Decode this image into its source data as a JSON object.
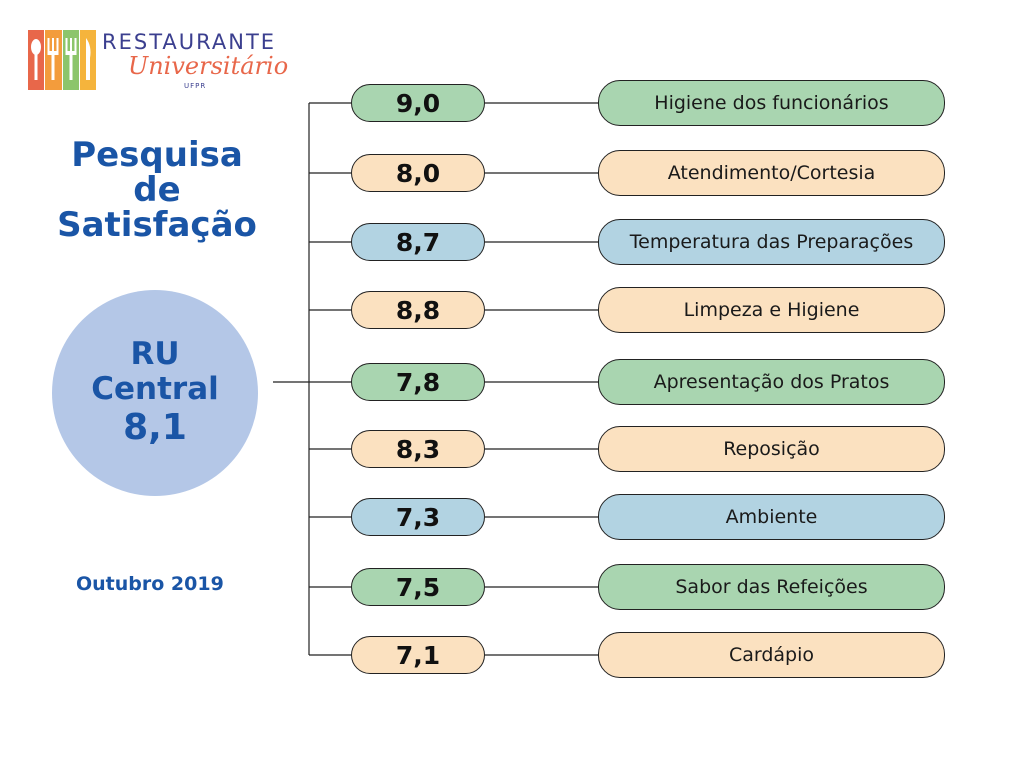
{
  "logo": {
    "title": "RESTAURANTE",
    "script": "Universitário",
    "sub": "UFPR",
    "bar_colors": [
      "#e8674a",
      "#f39c3c",
      "#8cc56b",
      "#f5b43c"
    ]
  },
  "heading": {
    "line1": "Pesquisa",
    "line2": "de",
    "line3": "Satisfação"
  },
  "summary": {
    "name_line1": "RU",
    "name_line2": "Central",
    "score": "8,1"
  },
  "date": "Outubro 2019",
  "colors": {
    "green": "#a9d5b0",
    "peach": "#fbe1c0",
    "blue": "#b2d3e2",
    "heading": "#1a55a6",
    "circle": "#b4c7e7"
  },
  "items": [
    {
      "score": "9,0",
      "label": "Higiene dos funcionários",
      "color": "green"
    },
    {
      "score": "8,0",
      "label": "Atendimento/Cortesia",
      "color": "peach"
    },
    {
      "score": "8,7",
      "label": "Temperatura das Preparações",
      "color": "blue"
    },
    {
      "score": "8,8",
      "label": "Limpeza e Higiene",
      "color": "peach"
    },
    {
      "score": "7,8",
      "label": "Apresentação dos Pratos",
      "color": "green"
    },
    {
      "score": "8,3",
      "label": "Reposição",
      "color": "peach"
    },
    {
      "score": "7,3",
      "label": "Ambiente",
      "color": "blue"
    },
    {
      "score": "7,5",
      "label": "Sabor das Refeições",
      "color": "green"
    },
    {
      "score": "7,1",
      "label": "Cardápio",
      "color": "peach"
    }
  ]
}
